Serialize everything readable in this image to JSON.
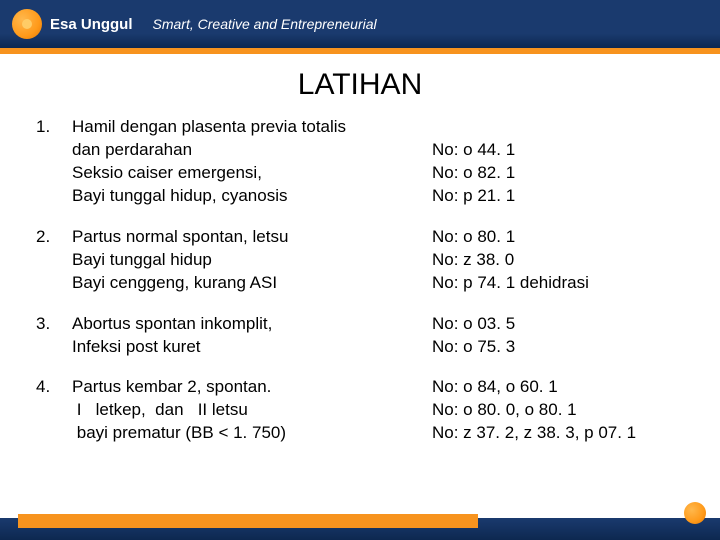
{
  "header": {
    "brand": "Esa Unggul",
    "tagline": "Smart, Creative and Entrepreneurial"
  },
  "title": "LATIHAN",
  "items": [
    {
      "num": "1.",
      "left": [
        "Hamil dengan plasenta previa totalis",
        "dan perdarahan",
        "Seksio caiser emergensi,",
        "Bayi tunggal hidup, cyanosis"
      ],
      "right": [
        "",
        "No: o 44. 1",
        "No: o 82. 1",
        "No: p 21. 1"
      ]
    },
    {
      "num": "2.",
      "left": [
        "Partus normal spontan, letsu",
        "Bayi tunggal hidup",
        "Bayi cenggeng, kurang ASI"
      ],
      "right": [
        "No: o 80. 1",
        "No: z 38. 0",
        "No: p 74. 1 dehidrasi"
      ]
    },
    {
      "num": "3.",
      "left": [
        "Abortus spontan inkomplit,",
        "Infeksi post kuret"
      ],
      "right": [
        "No: o 03. 5",
        "No: o 75. 3"
      ]
    },
    {
      "num": "4.",
      "left": [
        "Partus kembar 2, spontan.",
        " I   letkep,  dan   II letsu",
        " bayi prematur (BB < 1. 750)"
      ],
      "right": [
        "No: o 84, o 60. 1",
        "No: o 80. 0, o 80. 1",
        "No: z 37. 2, z 38. 3, p 07. 1"
      ]
    }
  ],
  "colors": {
    "navy": "#1a3a6e",
    "orange": "#f7931e",
    "text": "#000000",
    "bg": "#ffffff"
  }
}
